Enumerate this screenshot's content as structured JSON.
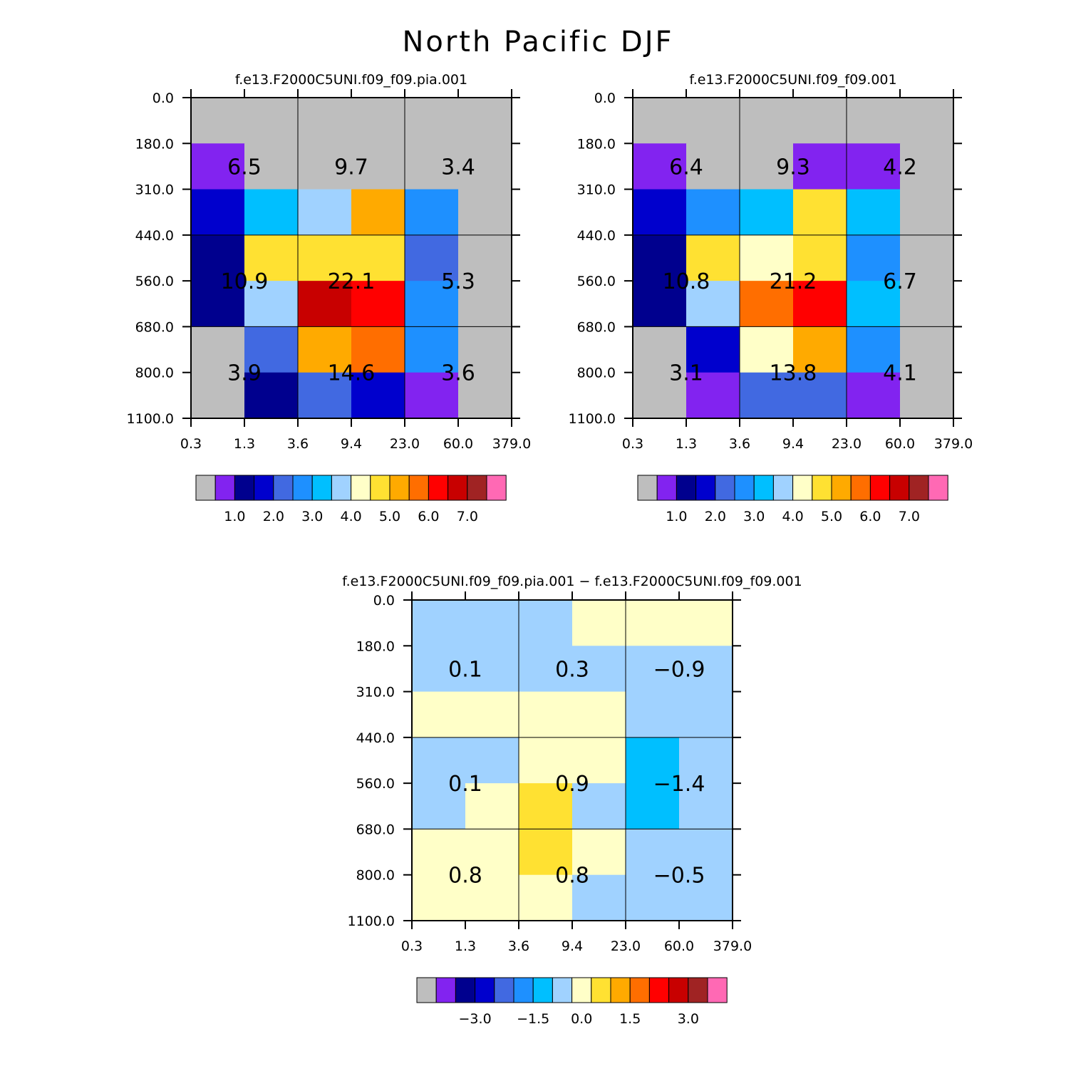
{
  "title": "North Pacific DJF",
  "palette": {
    "gray": "#bebebe",
    "violet": "#8223f0",
    "navy": "#00008e",
    "blue": "#0000cd",
    "royal": "#4169e1",
    "dodger": "#1e90ff",
    "sky": "#00bfff",
    "lightblue": "#a0d2ff",
    "cream": "#ffffc8",
    "gold": "#ffe132",
    "orange": "#ffaa00",
    "darkorange": "#ff6e00",
    "red": "#ff0000",
    "crimson": "#c80000",
    "brown": "#a02323",
    "pink": "#ff69b4"
  },
  "chart_data": [
    {
      "type": "heatmap",
      "title": "f.e13.F2000C5UNI.f09_f09.pia.001",
      "x_ticks": [
        "0.3",
        "1.3",
        "3.6",
        "9.4",
        "23.0",
        "60.0",
        "379.0"
      ],
      "y_ticks": [
        "0.0",
        "180.0",
        "310.0",
        "440.0",
        "560.0",
        "680.0",
        "800.0",
        "1100.0"
      ],
      "cells": [
        [
          "gray",
          "gray",
          "gray",
          "gray",
          "gray",
          "gray"
        ],
        [
          "violet",
          "gray",
          "gray",
          "gray",
          "gray",
          "gray"
        ],
        [
          "blue",
          "sky",
          "lightblue",
          "orange",
          "dodger",
          "gray"
        ],
        [
          "navy",
          "gold",
          "gold",
          "gold",
          "royal",
          "gray"
        ],
        [
          "navy",
          "lightblue",
          "crimson",
          "red",
          "dodger",
          "gray"
        ],
        [
          "gray",
          "royal",
          "orange",
          "darkorange",
          "dodger",
          "gray"
        ],
        [
          "gray",
          "navy",
          "royal",
          "blue",
          "violet",
          "gray"
        ]
      ],
      "cell_labels": [
        [
          "6.5",
          "9.7",
          "3.4"
        ],
        [
          "10.9",
          "22.1",
          "5.3"
        ],
        [
          "3.9",
          "14.6",
          "3.6"
        ]
      ],
      "colorbar": {
        "colors": [
          "gray",
          "violet",
          "navy",
          "blue",
          "royal",
          "dodger",
          "sky",
          "lightblue",
          "cream",
          "gold",
          "orange",
          "darkorange",
          "red",
          "crimson",
          "brown",
          "pink"
        ],
        "labels": [
          "1.0",
          "2.0",
          "3.0",
          "4.0",
          "5.0",
          "6.0",
          "7.0"
        ],
        "label_positions": [
          2,
          4,
          6,
          8,
          10,
          12,
          14
        ]
      }
    },
    {
      "type": "heatmap",
      "title": "f.e13.F2000C5UNI.f09_f09.001",
      "x_ticks": [
        "0.3",
        "1.3",
        "3.6",
        "9.4",
        "23.0",
        "60.0",
        "379.0"
      ],
      "y_ticks": [
        "0.0",
        "180.0",
        "310.0",
        "440.0",
        "560.0",
        "680.0",
        "800.0",
        "1100.0"
      ],
      "cells": [
        [
          "gray",
          "gray",
          "gray",
          "gray",
          "gray",
          "gray"
        ],
        [
          "violet",
          "gray",
          "gray",
          "violet",
          "violet",
          "gray"
        ],
        [
          "blue",
          "dodger",
          "sky",
          "gold",
          "sky",
          "gray"
        ],
        [
          "navy",
          "gold",
          "cream",
          "gold",
          "dodger",
          "gray"
        ],
        [
          "navy",
          "lightblue",
          "darkorange",
          "red",
          "sky",
          "gray"
        ],
        [
          "gray",
          "blue",
          "cream",
          "orange",
          "dodger",
          "gray"
        ],
        [
          "gray",
          "violet",
          "royal",
          "royal",
          "violet",
          "gray"
        ]
      ],
      "cell_labels": [
        [
          "6.4",
          "9.3",
          "4.2"
        ],
        [
          "10.8",
          "21.2",
          "6.7"
        ],
        [
          "3.1",
          "13.8",
          "4.1"
        ]
      ],
      "colorbar": {
        "colors": [
          "gray",
          "violet",
          "navy",
          "blue",
          "royal",
          "dodger",
          "sky",
          "lightblue",
          "cream",
          "gold",
          "orange",
          "darkorange",
          "red",
          "crimson",
          "brown",
          "pink"
        ],
        "labels": [
          "1.0",
          "2.0",
          "3.0",
          "4.0",
          "5.0",
          "6.0",
          "7.0"
        ],
        "label_positions": [
          2,
          4,
          6,
          8,
          10,
          12,
          14
        ]
      }
    },
    {
      "type": "heatmap",
      "title": "f.e13.F2000C5UNI.f09_f09.pia.001 − f.e13.F2000C5UNI.f09_f09.001",
      "x_ticks": [
        "0.3",
        "1.3",
        "3.6",
        "9.4",
        "23.0",
        "60.0",
        "379.0"
      ],
      "y_ticks": [
        "0.0",
        "180.0",
        "310.0",
        "440.0",
        "560.0",
        "680.0",
        "800.0",
        "1100.0"
      ],
      "cells": [
        [
          "lightblue",
          "lightblue",
          "lightblue",
          "cream",
          "cream",
          "cream"
        ],
        [
          "lightblue",
          "lightblue",
          "lightblue",
          "lightblue",
          "lightblue",
          "lightblue"
        ],
        [
          "cream",
          "cream",
          "cream",
          "cream",
          "lightblue",
          "lightblue"
        ],
        [
          "lightblue",
          "lightblue",
          "cream",
          "cream",
          "sky",
          "lightblue"
        ],
        [
          "lightblue",
          "cream",
          "gold",
          "lightblue",
          "sky",
          "lightblue"
        ],
        [
          "cream",
          "cream",
          "gold",
          "cream",
          "lightblue",
          "lightblue"
        ],
        [
          "cream",
          "cream",
          "cream",
          "lightblue",
          "lightblue",
          "lightblue"
        ]
      ],
      "cell_labels": [
        [
          "0.1",
          "0.3",
          "−0.9"
        ],
        [
          "0.1",
          "0.9",
          "−1.4"
        ],
        [
          "0.8",
          "0.8",
          "−0.5"
        ]
      ],
      "colorbar": {
        "colors": [
          "gray",
          "violet",
          "navy",
          "blue",
          "royal",
          "dodger",
          "sky",
          "lightblue",
          "cream",
          "gold",
          "orange",
          "darkorange",
          "red",
          "crimson",
          "brown",
          "pink"
        ],
        "labels": [
          "−3.0",
          "−1.5",
          "0.0",
          "1.5",
          "3.0"
        ],
        "label_positions": [
          3,
          6,
          8.5,
          11,
          14
        ]
      }
    }
  ]
}
